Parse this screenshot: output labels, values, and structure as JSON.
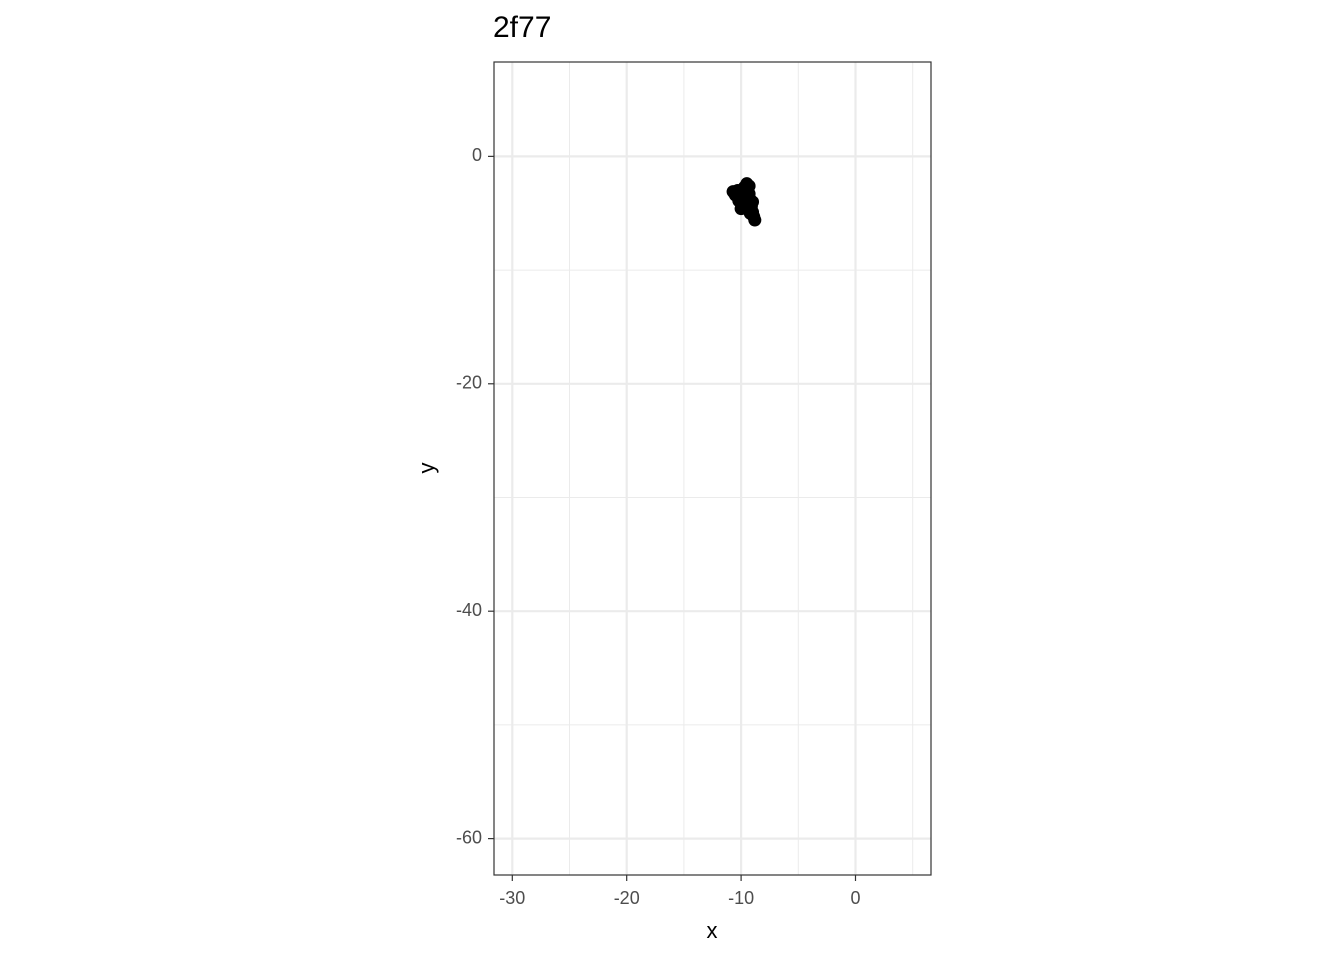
{
  "chart_data": {
    "type": "scatter",
    "title": "2f77",
    "x_label": "x",
    "y_label": "y",
    "x": [
      -10.7,
      -10.5,
      -10.3,
      -10.1,
      -9.9,
      -9.7,
      -9.5,
      -9.4,
      -9.6,
      -9.3,
      -9.8,
      -10.0,
      -9.5,
      -9.2,
      -9.1,
      -9.0,
      -8.9,
      -9.2,
      -9.4,
      -8.8,
      -9.7,
      -10.2,
      -9.3,
      -9.0,
      -9.6
    ],
    "y": [
      -3.1,
      -3.4,
      -3.0,
      -3.6,
      -3.2,
      -2.7,
      -2.4,
      -2.9,
      -3.5,
      -3.3,
      -4.0,
      -4.6,
      -4.2,
      -3.8,
      -4.4,
      -4.9,
      -5.3,
      -5.0,
      -4.7,
      -5.6,
      -4.4,
      -3.9,
      -2.6,
      -4.0,
      -3.0
    ],
    "color": "#000000",
    "xlim": [
      -31.6,
      6.6
    ],
    "ylim": [
      -63.2,
      8.3
    ],
    "xticks": [
      -30,
      -20,
      -10,
      0
    ],
    "yticks": [
      0,
      -20,
      -40,
      -60
    ],
    "xminor": [
      -25,
      -15,
      -5,
      5
    ],
    "yminor": [
      -10,
      -30,
      -50
    ],
    "grid": true
  }
}
